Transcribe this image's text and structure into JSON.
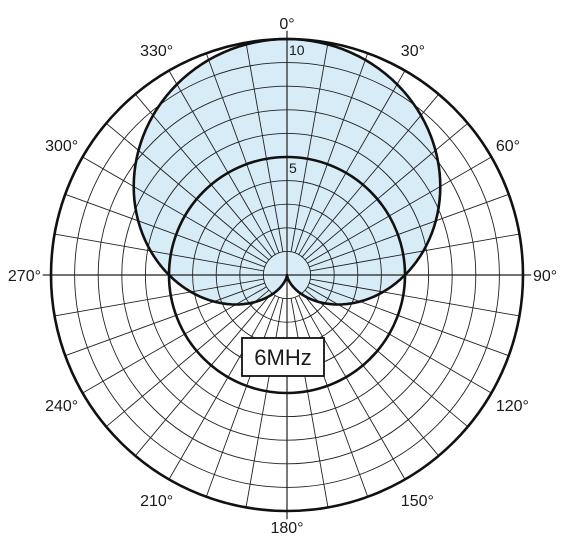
{
  "chart_data": {
    "type": "polar",
    "annotation": "6MHz",
    "angle_ticks": [
      {
        "angle": 0,
        "label": "0°"
      },
      {
        "angle": 30,
        "label": "30°"
      },
      {
        "angle": 60,
        "label": "60°"
      },
      {
        "angle": 90,
        "label": "90°"
      },
      {
        "angle": 120,
        "label": "120°"
      },
      {
        "angle": 150,
        "label": "150°"
      },
      {
        "angle": 180,
        "label": "180°"
      },
      {
        "angle": 210,
        "label": "210°"
      },
      {
        "angle": 240,
        "label": "240°"
      },
      {
        "angle": 270,
        "label": "270°"
      },
      {
        "angle": 300,
        "label": "300°"
      },
      {
        "angle": 330,
        "label": "330°"
      }
    ],
    "radial_ticks": [
      {
        "value": 5,
        "label": "5"
      },
      {
        "value": 10,
        "label": "10"
      }
    ],
    "r_range": [
      0,
      10
    ],
    "ring_step": 1,
    "spoke_step_deg": 10,
    "series": [
      {
        "pattern": "cardioid",
        "r_max": 10,
        "fill": "#d8ecf7",
        "stroke": "#111111"
      },
      {
        "pattern": "circle",
        "r": 5
      }
    ],
    "colors": {
      "fill": "#d8ecf7",
      "line": "#111111",
      "grid": "#222222"
    }
  }
}
